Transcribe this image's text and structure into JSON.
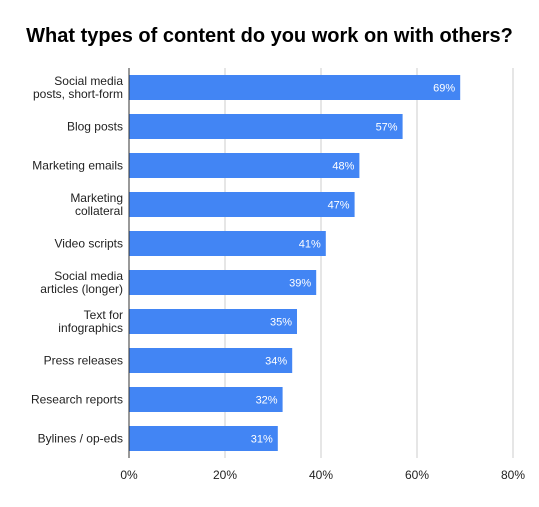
{
  "colors": {
    "bar": "#4285f4",
    "grid": "#cccccc",
    "axis": "#333333",
    "label_text": "#222222",
    "value_text": "#ffffff"
  },
  "chart_data": {
    "type": "bar",
    "orientation": "horizontal",
    "title": "What types of content do you work on with others?",
    "xlabel": "",
    "ylabel": "",
    "categories": [
      [
        "Social media",
        "posts, short-form"
      ],
      [
        "Blog posts"
      ],
      [
        "Marketing emails"
      ],
      [
        "Marketing",
        "collateral"
      ],
      [
        "Video scripts"
      ],
      [
        "Social media",
        "articles (longer)"
      ],
      [
        "Text for",
        "infographics"
      ],
      [
        "Press releases"
      ],
      [
        "Research reports"
      ],
      [
        "Bylines / op-eds"
      ]
    ],
    "values": [
      69,
      57,
      48,
      47,
      41,
      39,
      35,
      34,
      32,
      31
    ],
    "value_labels": [
      "69%",
      "57%",
      "48%",
      "47%",
      "41%",
      "39%",
      "35%",
      "34%",
      "32%",
      "31%"
    ],
    "xlim": [
      0,
      80
    ],
    "x_ticks": [
      0,
      20,
      40,
      60,
      80
    ],
    "x_tick_labels": [
      "0%",
      "20%",
      "40%",
      "60%",
      "80%"
    ],
    "grid": true,
    "legend": "none"
  }
}
